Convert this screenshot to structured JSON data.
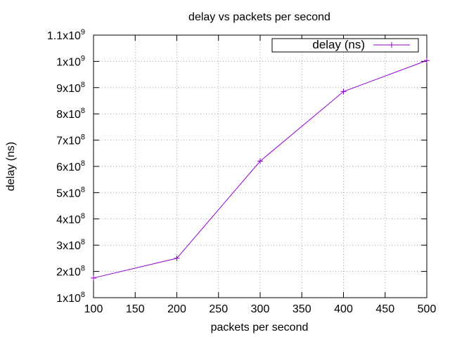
{
  "chart_data": {
    "type": "line",
    "title": "delay vs packets per second",
    "xlabel": "packets per second",
    "ylabel": "delay (ns)",
    "xlim": [
      100,
      500
    ],
    "ylim": [
      100000000,
      1100000000
    ],
    "x_ticks": [
      100,
      150,
      200,
      250,
      300,
      350,
      400,
      450,
      500
    ],
    "x_tick_labels": [
      "100",
      "150",
      "200",
      "250",
      "300",
      "350",
      "400",
      "450",
      "500"
    ],
    "y_ticks": [
      {
        "value": 100000000,
        "mantissa": "1",
        "exponent": "8"
      },
      {
        "value": 200000000,
        "mantissa": "2",
        "exponent": "8"
      },
      {
        "value": 300000000,
        "mantissa": "3",
        "exponent": "8"
      },
      {
        "value": 400000000,
        "mantissa": "4",
        "exponent": "8"
      },
      {
        "value": 500000000,
        "mantissa": "5",
        "exponent": "8"
      },
      {
        "value": 600000000,
        "mantissa": "6",
        "exponent": "8"
      },
      {
        "value": 700000000,
        "mantissa": "7",
        "exponent": "8"
      },
      {
        "value": 800000000,
        "mantissa": "8",
        "exponent": "8"
      },
      {
        "value": 900000000,
        "mantissa": "9",
        "exponent": "8"
      },
      {
        "value": 1000000000,
        "mantissa": "1",
        "exponent": "9"
      },
      {
        "value": 1100000000,
        "mantissa": "1.1",
        "exponent": "9"
      }
    ],
    "grid": true,
    "legend_position": "top-right",
    "series": [
      {
        "name": "delay (ns)",
        "color": "#9400d3",
        "marker": "plus",
        "x": [
          100,
          200,
          300,
          400,
          500
        ],
        "y": [
          175000000,
          250000000,
          620000000,
          885000000,
          1003000000
        ]
      }
    ]
  }
}
